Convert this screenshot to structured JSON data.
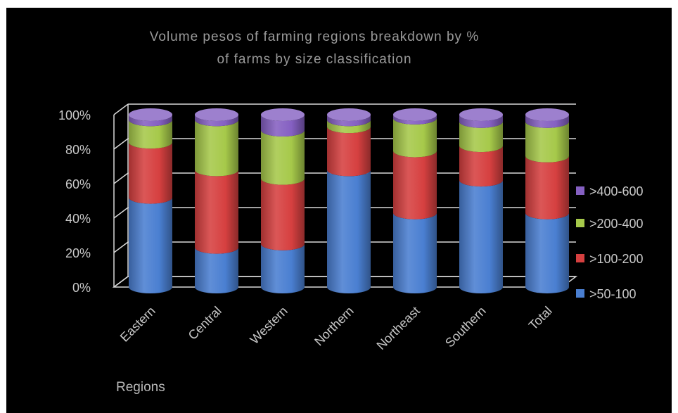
{
  "chart_data": {
    "type": "bar",
    "stacked": true,
    "percent": true,
    "style": "3d-cylinder",
    "title": [
      "Volume pesos of farming regions breakdown by %",
      "of farms by size classification"
    ],
    "xlabel": "Regions",
    "ylabel": "",
    "ylim": [
      0,
      100
    ],
    "yticks": [
      "0%",
      "20%",
      "40%",
      "60%",
      "80%",
      "100%"
    ],
    "categories": [
      "Eastern",
      "Central",
      "Western",
      "Northern",
      "Northeast",
      "Southern",
      "Total"
    ],
    "series": [
      {
        "name": ">50-100",
        "color": "#4a7fd1",
        "values": [
          52,
          23,
          25,
          68,
          43,
          62,
          43
        ]
      },
      {
        "name": ">100-200",
        "color": "#d64040",
        "values": [
          32,
          45,
          38,
          25,
          36,
          20,
          33
        ]
      },
      {
        "name": ">200-400",
        "color": "#a6c94a",
        "values": [
          13,
          29,
          28,
          4,
          19,
          14,
          20
        ]
      },
      {
        "name": ">400-600",
        "color": "#8560c2",
        "values": [
          3,
          3,
          9,
          3,
          2,
          4,
          4
        ]
      }
    ],
    "legend_position": "right",
    "grid": true,
    "background": "#000000"
  }
}
